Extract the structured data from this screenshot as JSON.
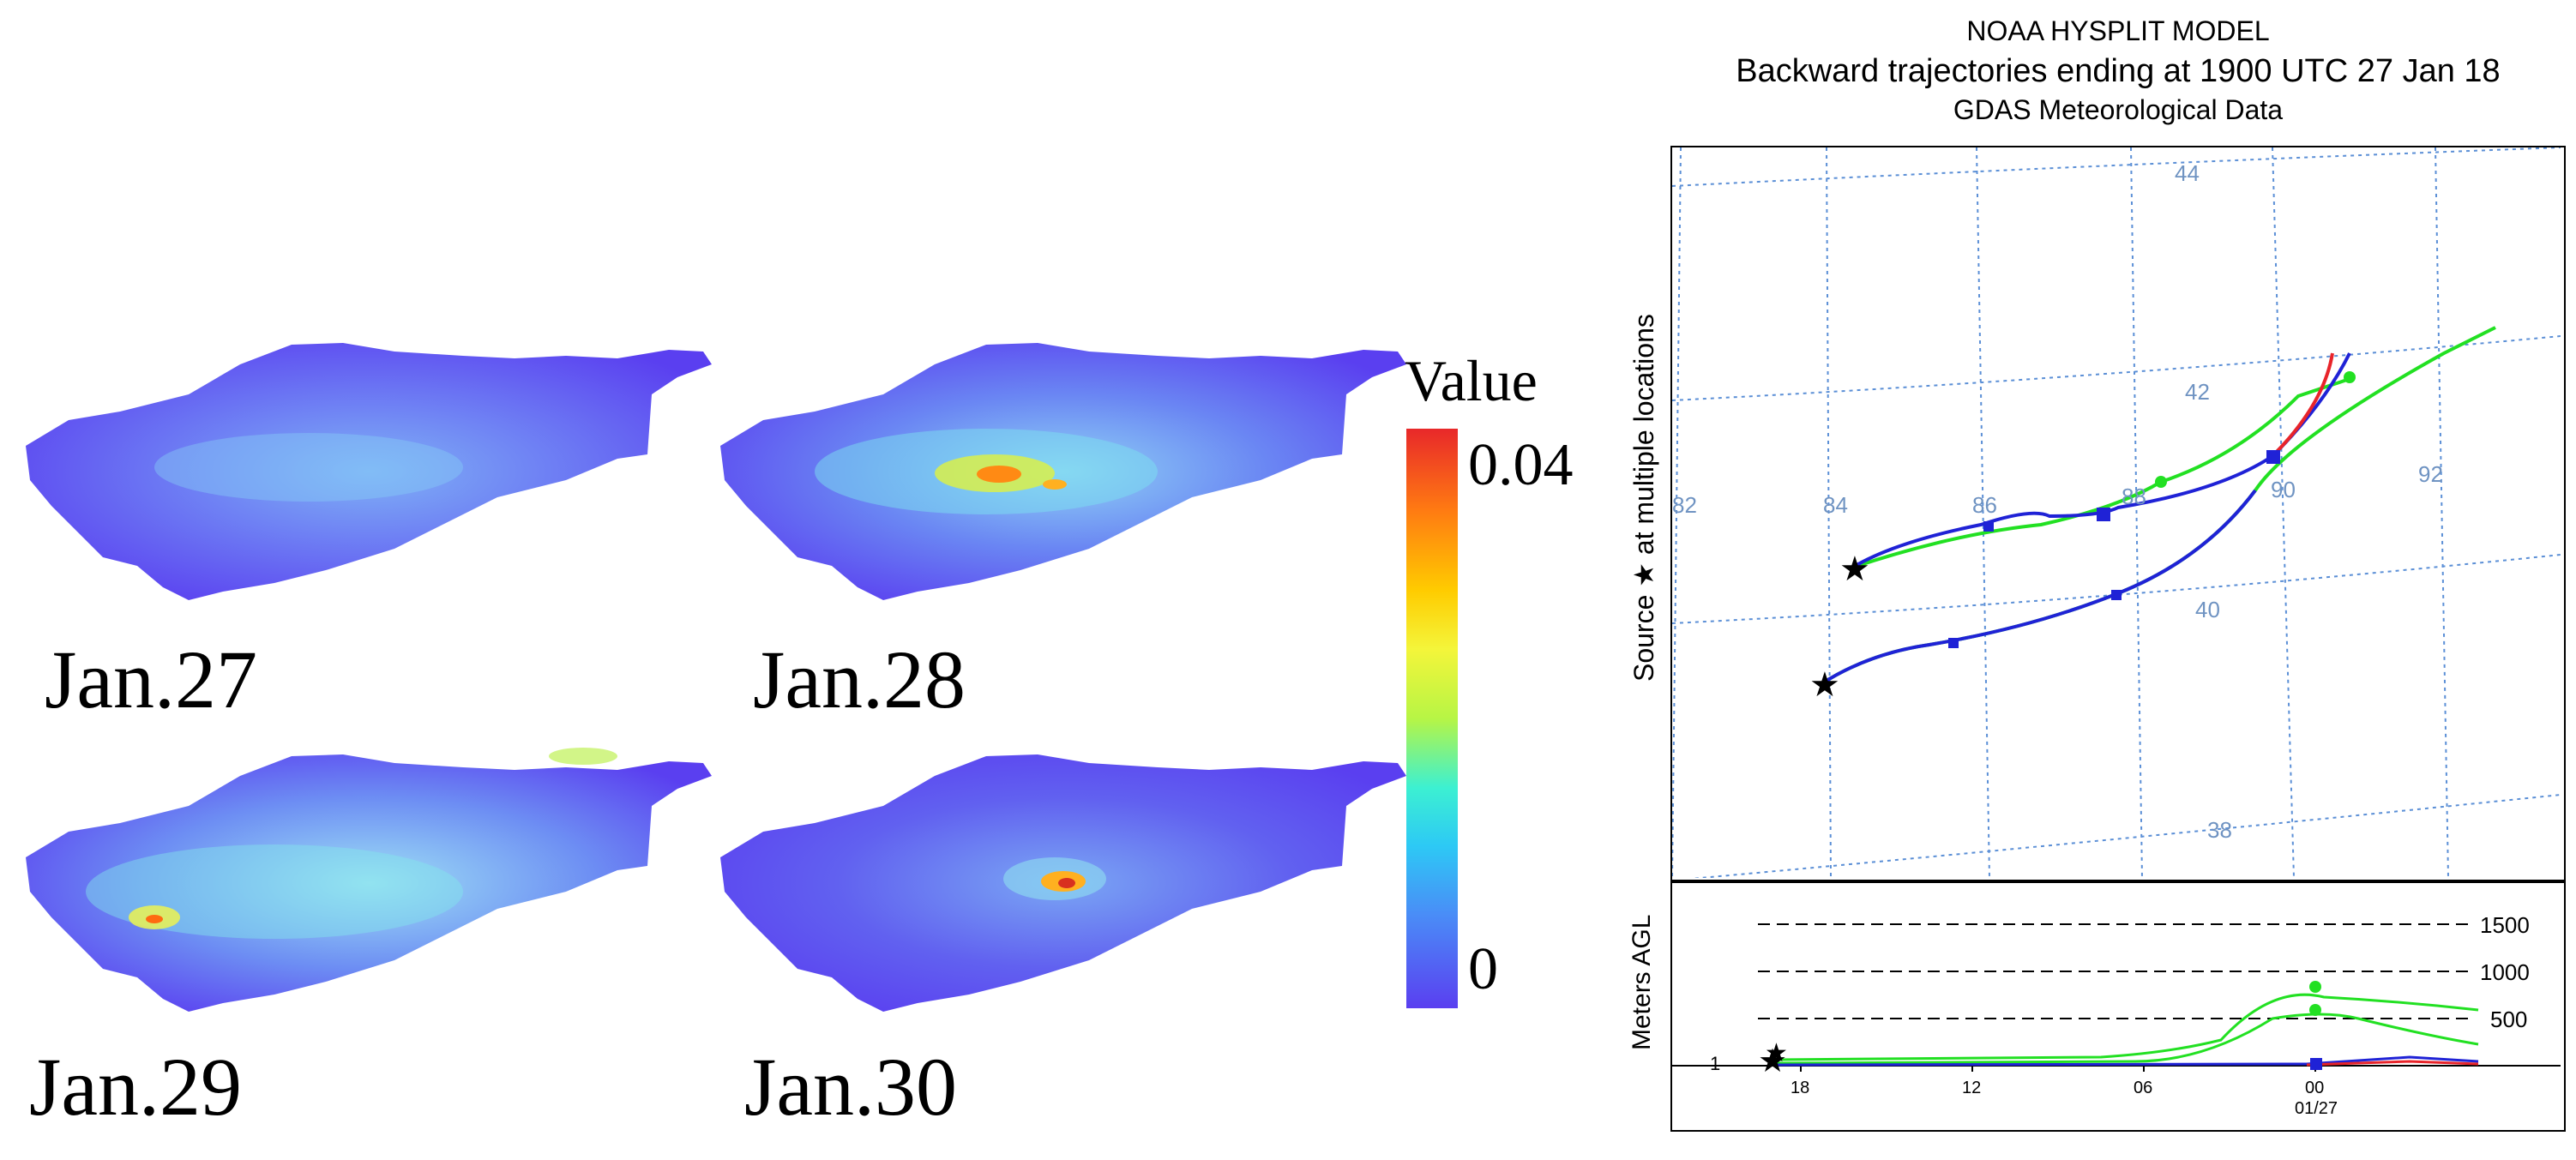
{
  "panels": [
    {
      "label": "Jan.27"
    },
    {
      "label": "Jan.28"
    },
    {
      "label": "Jan.29"
    },
    {
      "label": "Jan.30"
    }
  ],
  "legend": {
    "title": "Value",
    "max": "0.04",
    "min": "0"
  },
  "hysplit": {
    "title_line1": "NOAA HYSPLIT MODEL",
    "title_line2": "Backward trajectories ending at 1900 UTC 27 Jan 18",
    "title_line3": "GDAS Meteorological Data",
    "y_label_map": "Source ★  at multiple locations",
    "y_label_alt": "Meters AGL",
    "lon_labels": [
      "82",
      "84",
      "86",
      "88",
      "90",
      "92"
    ],
    "lat_labels": [
      "44",
      "42",
      "40",
      "38"
    ],
    "alt_levels": [
      "1500",
      "1000",
      "500"
    ],
    "alt_base": "1",
    "time_labels": [
      "18",
      "12",
      "06",
      "00"
    ],
    "date_label": "01/27",
    "colors": {
      "red": "#e8242a",
      "blue": "#1f22d6",
      "green": "#22e022",
      "grid": "#5b8fd6"
    }
  }
}
